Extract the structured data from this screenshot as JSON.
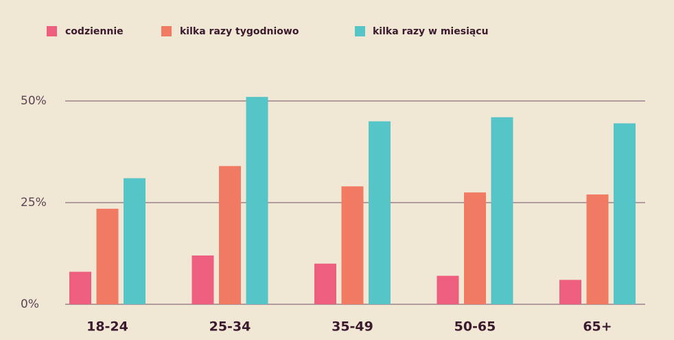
{
  "chart_data": {
    "type": "bar",
    "categories": [
      "18-24",
      "25-34",
      "35-49",
      "50-65",
      "65+"
    ],
    "series": [
      {
        "name": "codziennie",
        "color": "#ee5f7f",
        "values": [
          8,
          12,
          10,
          7,
          6
        ]
      },
      {
        "name": "kilka razy tygodniowo",
        "color": "#f07a62",
        "values": [
          23.5,
          34,
          29,
          27.5,
          27
        ]
      },
      {
        "name": "kilka razy w miesiącu",
        "color": "#56c5c8",
        "values": [
          31,
          51,
          45,
          46,
          44.5
        ]
      }
    ],
    "ylim": [
      0,
      55
    ],
    "yticks": [
      {
        "value": 0,
        "label": "0%"
      },
      {
        "value": 25,
        "label": "25%"
      },
      {
        "value": 50,
        "label": "50%"
      }
    ],
    "grid": true,
    "legend": "top"
  }
}
